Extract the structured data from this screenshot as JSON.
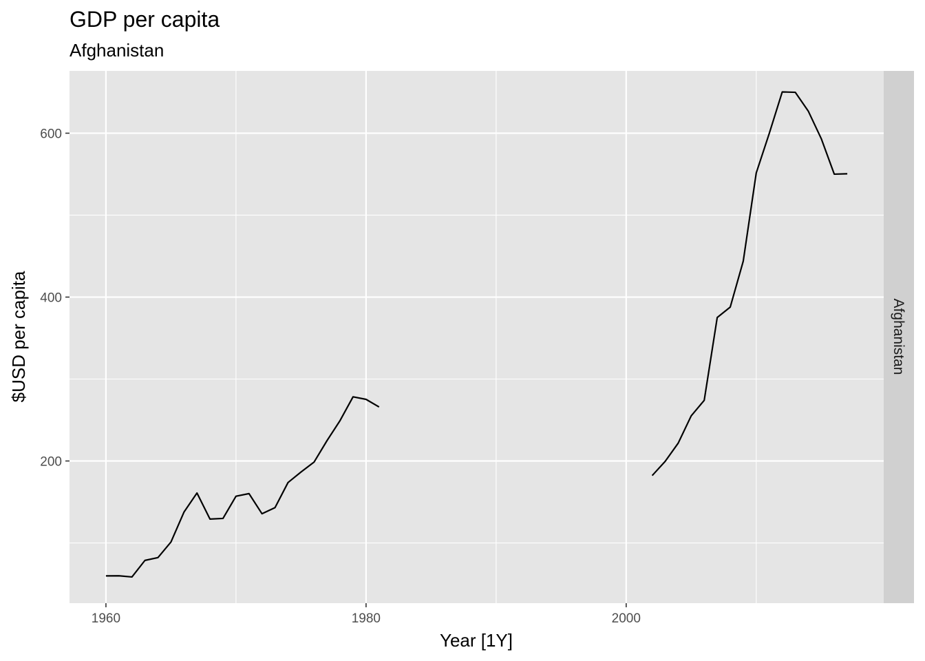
{
  "chart_data": {
    "type": "line",
    "title": "GDP per capita",
    "subtitle": "Afghanistan",
    "xlabel": "Year [1Y]",
    "ylabel": "$USD per capita",
    "facet_label": "Afghanistan",
    "xlim": [
      1957.2,
      2019.8
    ],
    "ylim": [
      26.5,
      676
    ],
    "x_ticks": [
      1960,
      1980,
      2000
    ],
    "y_ticks": [
      200,
      400,
      600
    ],
    "grid": true,
    "legend": "none",
    "background": "#e5e5e5",
    "strip_background": "#d0d0d0",
    "line_color": "#000000",
    "series": [
      {
        "x": [
          1960,
          1961,
          1962,
          1963,
          1964,
          1965,
          1966,
          1967,
          1968,
          1969,
          1970,
          1971,
          1972,
          1973,
          1974,
          1975,
          1976,
          1977,
          1978,
          1979,
          1980,
          1981,
          1982,
          1983,
          1984,
          1985,
          1986,
          1987,
          1988,
          1989,
          1990,
          1991,
          1992,
          1993,
          1994,
          1995,
          1996,
          1997,
          1998,
          1999,
          2000,
          2001,
          2002,
          2003,
          2004,
          2005,
          2006,
          2007,
          2008,
          2009,
          2010,
          2011,
          2012,
          2013,
          2014,
          2015,
          2016,
          2017
        ],
        "y": [
          59.8,
          59.9,
          58.5,
          78.7,
          82.1,
          101.1,
          137.6,
          160.9,
          129.1,
          129.9,
          157.0,
          160.2,
          135.6,
          143.1,
          173.7,
          186.6,
          198.6,
          224.9,
          249.3,
          278.3,
          275.2,
          265.9,
          null,
          null,
          null,
          null,
          null,
          null,
          null,
          null,
          null,
          null,
          null,
          null,
          null,
          null,
          null,
          null,
          null,
          null,
          null,
          null,
          182.2,
          199.6,
          221.8,
          255.1,
          274.0,
          375.1,
          387.8,
          443.8,
          551.5,
          599.7,
          650.4,
          649.9,
          627.0,
          593.3,
          550.0,
          550.5
        ]
      }
    ]
  }
}
